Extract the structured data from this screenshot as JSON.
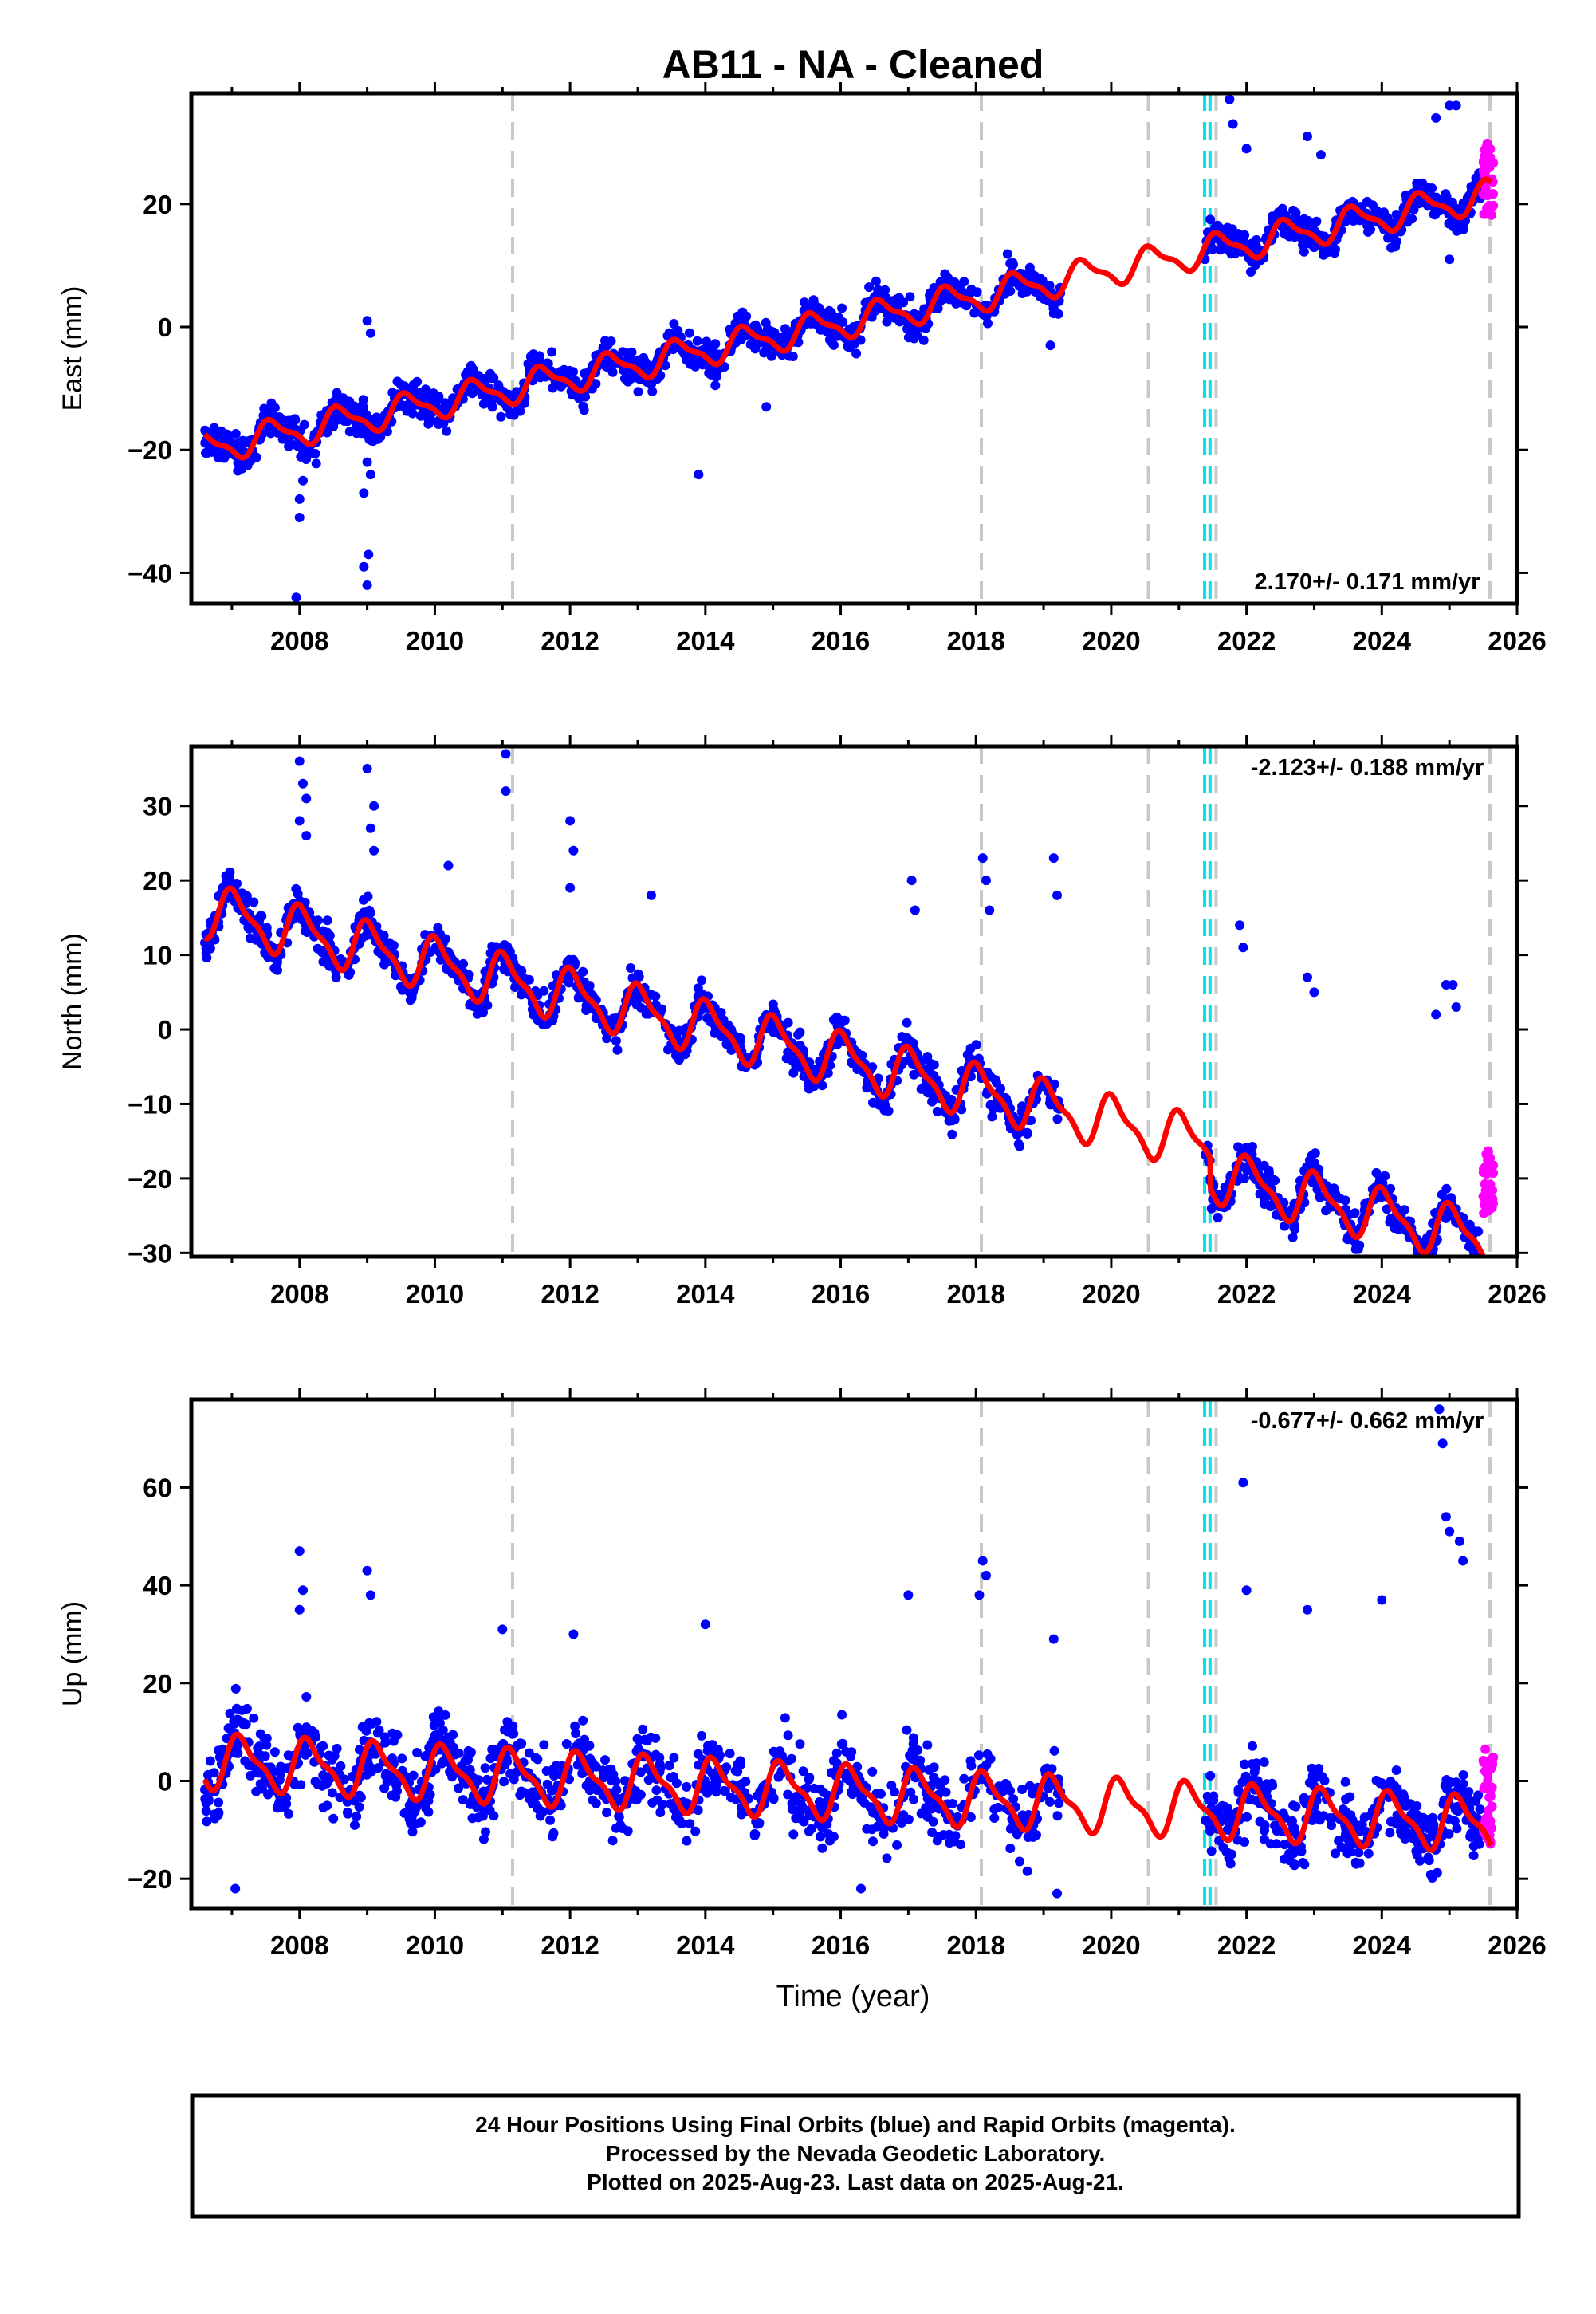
{
  "title": "AB11  - NA - Cleaned",
  "xlabel": "Time (year)",
  "colors": {
    "final_orbits": "#0000ff",
    "rapid_orbits": "#ff00ff",
    "model": "#ff0000",
    "equipment_change": "#c8c8c8",
    "earthquake": "#00e5e5"
  },
  "footer": {
    "line1": "24 Hour Positions Using Final Orbits (blue) and Rapid Orbits (magenta).",
    "line2": "Processed by the Nevada Geodetic Laboratory.",
    "line3": "Plotted on 2025-Aug-23. Last data on 2025-Aug-21."
  },
  "chart_data": [
    {
      "type": "scatter",
      "panel": "east",
      "ylabel": "East (mm)",
      "velocity": "2.170+/- 0.171 mm/yr",
      "xlim": [
        2006.4,
        2026.0
      ],
      "ylim": [
        -45,
        38
      ],
      "xticks": [
        "2008",
        "2010",
        "2012",
        "2014",
        "2016",
        "2018",
        "2020",
        "2022",
        "2024",
        "2026"
      ],
      "yticks": [
        "-40",
        "-20",
        "0",
        "20"
      ],
      "gray_dashed_lines": [
        2011.15,
        2018.08,
        2020.55,
        2021.55,
        2025.6
      ],
      "cyan_dashed_lines": [
        2021.38,
        2021.46
      ],
      "trend": {
        "x0": 2006.6,
        "y0": -19.8,
        "slope": 2.17,
        "annual_amp": 2.3,
        "phase": -0.35
      },
      "gap": [
        2019.25,
        2021.38
      ],
      "scatter_sd": 1.9,
      "outliers": [
        [
          2007.95,
          -44
        ],
        [
          2008.0,
          -28
        ],
        [
          2008.0,
          -31
        ],
        [
          2008.05,
          -25
        ],
        [
          2008.95,
          -39
        ],
        [
          2009.0,
          -42
        ],
        [
          2009.02,
          -37
        ],
        [
          2008.95,
          -27
        ],
        [
          2009.0,
          -22
        ],
        [
          2009.05,
          -24
        ],
        [
          2009.0,
          1
        ],
        [
          2009.05,
          -1
        ],
        [
          2013.9,
          -24
        ],
        [
          2014.9,
          -13
        ],
        [
          2019.1,
          -3
        ],
        [
          2021.75,
          37
        ],
        [
          2021.8,
          33
        ],
        [
          2025.0,
          36
        ],
        [
          2025.1,
          36
        ],
        [
          2024.8,
          34
        ],
        [
          2025.0,
          11
        ],
        [
          2022.0,
          29
        ],
        [
          2022.9,
          31
        ],
        [
          2023.1,
          28
        ]
      ],
      "rapid": {
        "x": [
          2025.5,
          2025.65
        ],
        "y": [
          18,
          30
        ]
      }
    },
    {
      "type": "scatter",
      "panel": "north",
      "ylabel": "North (mm)",
      "velocity": "-2.123+/- 0.188 mm/yr",
      "xlim": [
        2006.4,
        2026.0
      ],
      "ylim": [
        -30.5,
        38
      ],
      "xticks": [
        "2008",
        "2010",
        "2012",
        "2014",
        "2016",
        "2018",
        "2020",
        "2022",
        "2024",
        "2026"
      ],
      "yticks": [
        "-30",
        "-20",
        "-10",
        "0",
        "10",
        "20",
        "30"
      ],
      "gray_dashed_lines": [
        2011.15,
        2018.08,
        2020.55,
        2021.55,
        2025.6
      ],
      "cyan_dashed_lines": [
        2021.38,
        2021.46
      ],
      "trend": {
        "x0": 2006.6,
        "y0": 16.0,
        "slope": -2.123,
        "annual_amp": 3.2,
        "phase": 0.2,
        "offset_after": {
          "x": 2021.46,
          "dy": -4.0
        }
      },
      "gap": [
        2019.25,
        2021.38
      ],
      "scatter_sd": 1.8,
      "outliers": [
        [
          2008.0,
          36
        ],
        [
          2008.05,
          33
        ],
        [
          2008.1,
          31
        ],
        [
          2008.0,
          28
        ],
        [
          2008.1,
          26
        ],
        [
          2009.0,
          35
        ],
        [
          2009.1,
          30
        ],
        [
          2009.05,
          27
        ],
        [
          2009.1,
          24
        ],
        [
          2010.2,
          22
        ],
        [
          2011.05,
          37
        ],
        [
          2011.05,
          32
        ],
        [
          2012.0,
          28
        ],
        [
          2012.05,
          24
        ],
        [
          2012.0,
          19
        ],
        [
          2013.2,
          18
        ],
        [
          2017.05,
          20
        ],
        [
          2017.1,
          16
        ],
        [
          2018.1,
          23
        ],
        [
          2018.15,
          20
        ],
        [
          2018.2,
          16
        ],
        [
          2019.15,
          23
        ],
        [
          2019.2,
          18
        ],
        [
          2021.9,
          14
        ],
        [
          2021.95,
          11
        ],
        [
          2022.9,
          7
        ],
        [
          2023.0,
          5
        ],
        [
          2024.95,
          6
        ],
        [
          2025.05,
          6
        ],
        [
          2025.1,
          3
        ],
        [
          2024.8,
          2
        ]
      ],
      "rapid": {
        "x": [
          2025.5,
          2025.65
        ],
        "y": [
          -25,
          -16
        ]
      }
    },
    {
      "type": "scatter",
      "panel": "up",
      "ylabel": "Up (mm)",
      "velocity": "-0.677+/- 0.662 mm/yr",
      "xlim": [
        2006.4,
        2026.0
      ],
      "ylim": [
        -26,
        78
      ],
      "xticks": [
        "2008",
        "2010",
        "2012",
        "2014",
        "2016",
        "2018",
        "2020",
        "2022",
        "2024",
        "2026"
      ],
      "yticks": [
        "-20",
        "0",
        "20",
        "40",
        "60"
      ],
      "gray_dashed_lines": [
        2011.15,
        2018.08,
        2020.55,
        2021.55,
        2025.6
      ],
      "cyan_dashed_lines": [
        2021.38,
        2021.46
      ],
      "trend": {
        "x0": 2006.6,
        "y0": 4.0,
        "slope": -0.677,
        "annual_amp": 5.0,
        "phase": 0.1
      },
      "gap": [
        2019.25,
        2021.38
      ],
      "scatter_sd": 5.5,
      "outliers": [
        [
          2008.0,
          47
        ],
        [
          2008.05,
          39
        ],
        [
          2008.0,
          35
        ],
        [
          2009.0,
          43
        ],
        [
          2009.05,
          38
        ],
        [
          2011.0,
          31
        ],
        [
          2012.05,
          30
        ],
        [
          2014.0,
          32
        ],
        [
          2017.0,
          38
        ],
        [
          2018.1,
          45
        ],
        [
          2018.15,
          42
        ],
        [
          2018.05,
          38
        ],
        [
          2019.15,
          29
        ],
        [
          2021.95,
          61
        ],
        [
          2022.0,
          39
        ],
        [
          2022.9,
          35
        ],
        [
          2024.0,
          37
        ],
        [
          2024.85,
          76
        ],
        [
          2024.9,
          69
        ],
        [
          2024.95,
          54
        ],
        [
          2025.0,
          51
        ],
        [
          2025.15,
          49
        ],
        [
          2025.2,
          45
        ],
        [
          2007.05,
          -22
        ],
        [
          2019.2,
          -23
        ],
        [
          2016.3,
          -22
        ]
      ],
      "rapid": {
        "x": [
          2025.5,
          2025.65
        ],
        "y": [
          -13,
          7
        ]
      }
    }
  ]
}
